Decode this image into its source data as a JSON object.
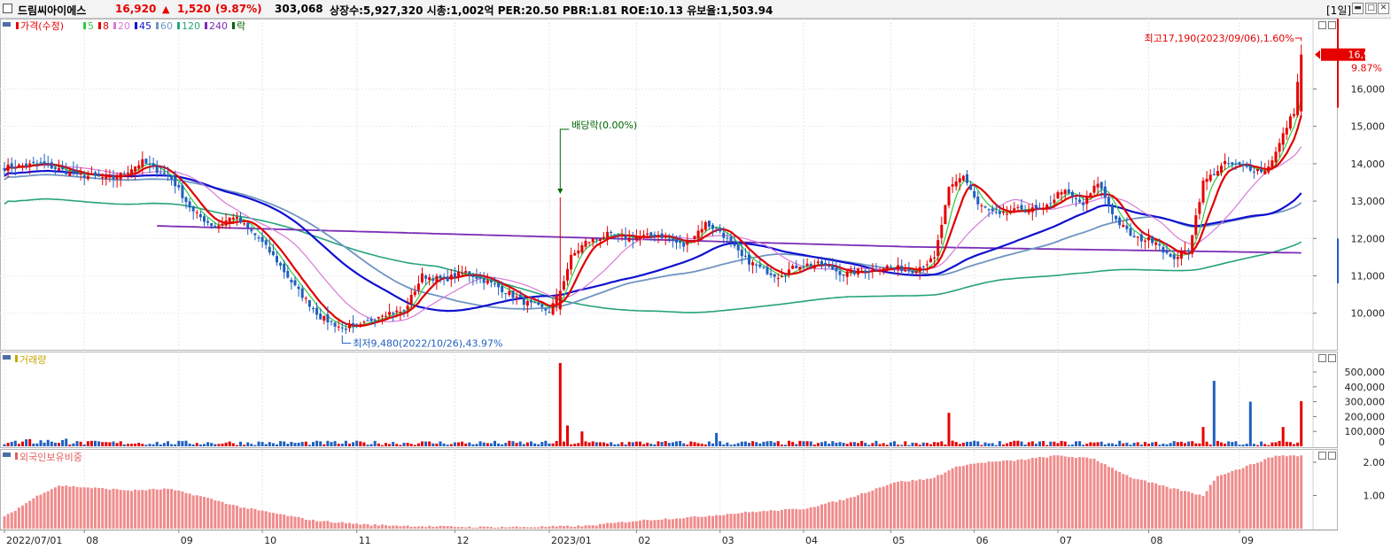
{
  "header": {
    "name": "드림씨아이에스",
    "price": "16,920",
    "change_arrow": "▲",
    "change": "1,520",
    "change_pct": "(9.87%)",
    "volume": "303,068",
    "stats": "상장수:5,927,320 시총:1,002억 PER:20.50 PBR:1.81 ROE:10.13 유보율:1,503.94",
    "period": "[1일]"
  },
  "colors": {
    "up": "#e60000",
    "down": "#1f5fbf",
    "ma5": "#2ecc40",
    "ma8": "#e00000",
    "ma20": "#d77ad7",
    "ma45": "#1010d0",
    "ma60": "#6f95c4",
    "ma120": "#27a37a",
    "ma240": "#7a2cb5",
    "ex_dividend": "#006400",
    "foreign": "#f08c8c"
  },
  "panes": {
    "price": {
      "legend": [
        {
          "label": "가격(수정)",
          "color": "#e60000"
        },
        {
          "label": "5",
          "color": "#2ecc40"
        },
        {
          "label": "8",
          "color": "#e00000"
        },
        {
          "label": "20",
          "color": "#d77ad7"
        },
        {
          "label": "45",
          "color": "#1010d0"
        },
        {
          "label": "60",
          "color": "#6f95c4"
        },
        {
          "label": "120",
          "color": "#27a37a"
        },
        {
          "label": "240",
          "color": "#7a2cb5"
        },
        {
          "label": "락",
          "color": "#006400"
        }
      ],
      "high_annotation": "최고17,190(2023/09/06),1.60%",
      "low_annotation": "최저9,480(2022/10/26),43.97%",
      "ex_dividend_annotation": "배당락(0.00%)",
      "current_price_label": "16,920",
      "current_pct_label": "9.87%"
    },
    "volume": {
      "legend": "거래량"
    },
    "foreign": {
      "legend": "외국인보유비중"
    }
  },
  "chart_data": [
    {
      "type": "candlestick",
      "ylim": [
        9000,
        18000
      ],
      "y_ticks": [
        "10,000",
        "11,000",
        "12,000",
        "13,000",
        "14,000",
        "15,000",
        "16,000"
      ],
      "x_labels": [
        "2022/07/01",
        "08",
        "09",
        "10",
        "11",
        "12",
        "2023/01",
        "02",
        "03",
        "04",
        "05",
        "06",
        "07",
        "08",
        "09"
      ],
      "close_anchors": [
        [
          0,
          13900
        ],
        [
          10,
          14000
        ],
        [
          20,
          13700
        ],
        [
          30,
          13600
        ],
        [
          38,
          14050
        ],
        [
          46,
          13600
        ],
        [
          52,
          12700
        ],
        [
          58,
          12300
        ],
        [
          63,
          12600
        ],
        [
          70,
          12000
        ],
        [
          75,
          11400
        ],
        [
          80,
          10700
        ],
        [
          87,
          9900
        ],
        [
          93,
          9600
        ],
        [
          98,
          9650
        ],
        [
          104,
          10000
        ],
        [
          110,
          10050
        ],
        [
          115,
          11000
        ],
        [
          121,
          10900
        ],
        [
          127,
          11100
        ],
        [
          135,
          10750
        ],
        [
          143,
          10300
        ],
        [
          150,
          10050
        ],
        [
          153,
          10600
        ],
        [
          156,
          11500
        ],
        [
          160,
          11900
        ],
        [
          166,
          12100
        ],
        [
          172,
          12000
        ],
        [
          180,
          12100
        ],
        [
          187,
          11800
        ],
        [
          193,
          12400
        ],
        [
          197,
          12200
        ],
        [
          203,
          11500
        ],
        [
          208,
          11200
        ],
        [
          213,
          11000
        ],
        [
          219,
          11300
        ],
        [
          225,
          11300
        ],
        [
          231,
          11050
        ],
        [
          237,
          11150
        ],
        [
          243,
          11250
        ],
        [
          250,
          11150
        ],
        [
          256,
          11450
        ],
        [
          260,
          13300
        ],
        [
          264,
          13700
        ],
        [
          268,
          12900
        ],
        [
          274,
          12600
        ],
        [
          280,
          12800
        ],
        [
          286,
          12750
        ],
        [
          291,
          13300
        ],
        [
          297,
          12900
        ],
        [
          301,
          13500
        ],
        [
          306,
          12500
        ],
        [
          311,
          12000
        ],
        [
          317,
          11950
        ],
        [
          321,
          11450
        ],
        [
          326,
          11700
        ],
        [
          330,
          13500
        ],
        [
          336,
          14000
        ],
        [
          342,
          13900
        ],
        [
          347,
          13800
        ],
        [
          350,
          14300
        ],
        [
          353,
          15000
        ],
        [
          355,
          15400
        ],
        [
          357,
          16920
        ]
      ],
      "ex_dividend_index": 153,
      "high": {
        "index": 357,
        "value": 17190
      },
      "low": {
        "index": 93,
        "value": 9480
      },
      "last_close": 16920
    },
    {
      "type": "bar",
      "title": "거래량",
      "ylim": [
        0,
        620000
      ],
      "y_ticks": [
        "100,000",
        "200,000",
        "300,000",
        "400,000",
        "500,000"
      ],
      "spikes": [
        [
          153,
          560000
        ],
        [
          155,
          140000
        ],
        [
          159,
          100000
        ],
        [
          196,
          90000
        ],
        [
          260,
          225000
        ],
        [
          330,
          130000
        ],
        [
          333,
          440000
        ],
        [
          343,
          300000
        ],
        [
          352,
          130000
        ],
        [
          357,
          303068
        ]
      ]
    },
    {
      "type": "bar",
      "title": "외국인보유비중",
      "ylim": [
        0,
        2.55
      ],
      "y_ticks": [
        "1.00",
        "2.00"
      ],
      "anchors": [
        [
          0,
          0.35
        ],
        [
          10,
          1.05
        ],
        [
          15,
          1.3
        ],
        [
          28,
          1.2
        ],
        [
          35,
          1.15
        ],
        [
          45,
          1.2
        ],
        [
          55,
          0.95
        ],
        [
          65,
          0.65
        ],
        [
          75,
          0.45
        ],
        [
          85,
          0.25
        ],
        [
          100,
          0.12
        ],
        [
          115,
          0.07
        ],
        [
          130,
          0.05
        ],
        [
          145,
          0.05
        ],
        [
          160,
          0.08
        ],
        [
          175,
          0.25
        ],
        [
          190,
          0.35
        ],
        [
          205,
          0.5
        ],
        [
          220,
          0.6
        ],
        [
          232,
          0.9
        ],
        [
          245,
          1.4
        ],
        [
          255,
          1.5
        ],
        [
          263,
          1.9
        ],
        [
          270,
          2.0
        ],
        [
          278,
          2.05
        ],
        [
          290,
          2.2
        ],
        [
          300,
          2.1
        ],
        [
          310,
          1.55
        ],
        [
          320,
          1.25
        ],
        [
          330,
          1.0
        ],
        [
          334,
          1.6
        ],
        [
          340,
          1.8
        ],
        [
          350,
          2.2
        ],
        [
          358,
          2.2
        ]
      ]
    }
  ]
}
